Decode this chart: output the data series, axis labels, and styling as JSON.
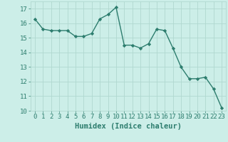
{
  "x": [
    0,
    1,
    2,
    3,
    4,
    5,
    6,
    7,
    8,
    9,
    10,
    11,
    12,
    13,
    14,
    15,
    16,
    17,
    18,
    19,
    20,
    21,
    22,
    23
  ],
  "y": [
    16.3,
    15.6,
    15.5,
    15.5,
    15.5,
    15.1,
    15.1,
    15.3,
    16.3,
    16.6,
    17.1,
    14.5,
    14.5,
    14.3,
    14.6,
    15.6,
    15.5,
    14.3,
    13.0,
    12.2,
    12.2,
    12.3,
    11.5,
    10.2
  ],
  "xlim": [
    -0.5,
    23.5
  ],
  "ylim": [
    10,
    17.5
  ],
  "yticks": [
    10,
    11,
    12,
    13,
    14,
    15,
    16,
    17
  ],
  "xticks": [
    0,
    1,
    2,
    3,
    4,
    5,
    6,
    7,
    8,
    9,
    10,
    11,
    12,
    13,
    14,
    15,
    16,
    17,
    18,
    19,
    20,
    21,
    22,
    23
  ],
  "xlabel": "Humidex (Indice chaleur)",
  "line_color": "#2d7d6e",
  "marker_color": "#2d7d6e",
  "bg_color": "#cceee8",
  "grid_color": "#b0d8d0",
  "tick_label_color": "#2d7d6e",
  "xlabel_color": "#2d7d6e",
  "xlabel_fontsize": 7.5,
  "tick_fontsize": 6.5,
  "marker": "D",
  "markersize": 2.2,
  "linewidth": 1.0
}
